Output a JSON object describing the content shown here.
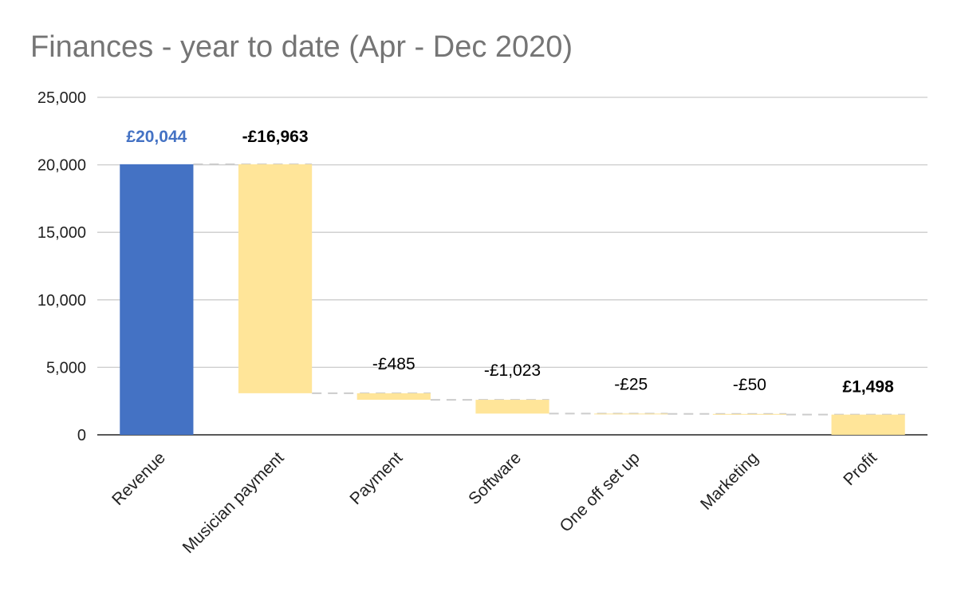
{
  "chart_data": {
    "type": "bar",
    "subtype": "waterfall",
    "title": "Finances - year to date (Apr - Dec 2020)",
    "xlabel": "",
    "ylabel": "",
    "ylim": [
      0,
      25000
    ],
    "yticks": [
      0,
      5000,
      10000,
      15000,
      20000,
      25000
    ],
    "ytick_labels": [
      "0",
      "5,000",
      "10,000",
      "15,000",
      "20,000",
      "25,000"
    ],
    "grid": true,
    "legend": "none",
    "categories": [
      "Revenue",
      "Musician payment",
      "Payment",
      "Software",
      "One off set up",
      "Marketing",
      "Profit"
    ],
    "values": [
      20044,
      -16963,
      -485,
      -1023,
      -25,
      -50,
      1498
    ],
    "kinds": [
      "total",
      "decrease",
      "decrease",
      "decrease",
      "decrease",
      "decrease",
      "total"
    ],
    "data_labels": [
      "£20,044",
      "-£16,963",
      "-£485",
      "-£1,023",
      "-£25",
      "-£50",
      "£1,498"
    ],
    "label_bold": [
      true,
      true,
      false,
      false,
      false,
      false,
      true
    ],
    "colors": {
      "total_first": "#4472c4",
      "decrease": "#ffe599",
      "total_last": "#ffe599",
      "first_label": "#4472c4",
      "label": "#000000",
      "connector": "#cccccc",
      "gridline": "#cccccc",
      "axis": "#222222"
    }
  }
}
